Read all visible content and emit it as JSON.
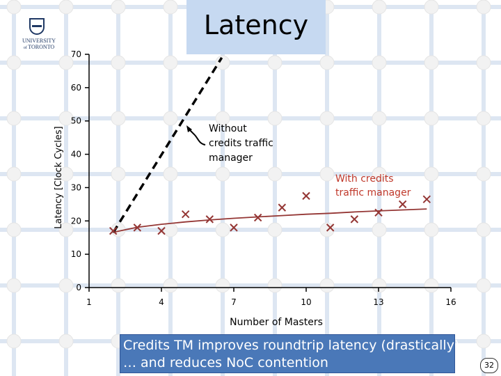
{
  "slide": {
    "title": "Latency",
    "logo_text": [
      "UNIVERSITY",
      "TORONTO"
    ],
    "callout_lines": [
      "Credits TM improves roundtrip latency (drastically)",
      "… and reduces NoC contention"
    ],
    "page_number": "32",
    "accent_color": "#c6d9f1",
    "callout_color": "#4a78b8",
    "marker_color": "#943634",
    "trend_color": "#943634",
    "dashed_line_color": "#000000"
  },
  "chart_data": {
    "type": "scatter",
    "title": "",
    "xlabel": "Number of Masters",
    "ylabel": "Latency [Clock Cycles]",
    "xlim": [
      1,
      16
    ],
    "ylim": [
      0,
      70
    ],
    "xticks": [
      "1",
      "4",
      "7",
      "10",
      "13",
      "16"
    ],
    "yticks": [
      "0",
      "10",
      "20",
      "30",
      "40",
      "50",
      "60",
      "70"
    ],
    "grid": false,
    "series": [
      {
        "name": "With credits traffic manager",
        "marker": "x",
        "x": [
          2,
          3,
          4,
          5,
          6,
          7,
          8,
          9,
          10,
          11,
          12,
          13,
          14,
          15
        ],
        "y": [
          17,
          18,
          17,
          22,
          20.5,
          18,
          21,
          24,
          27.5,
          18,
          20.5,
          22.5,
          25,
          26.5
        ]
      }
    ],
    "trendlines": [
      {
        "series": "With credits traffic manager",
        "style": "solid",
        "x": [
          2,
          3,
          4,
          5,
          6,
          7,
          8,
          9,
          10,
          11,
          12,
          13,
          14,
          15
        ],
        "y": [
          16.6,
          18.1,
          19.0,
          19.7,
          20.3,
          20.8,
          21.2,
          21.6,
          22.0,
          22.3,
          22.7,
          23.0,
          23.3,
          23.6
        ]
      },
      {
        "series": "Without credits traffic manager",
        "style": "dashed",
        "x": [
          2,
          6.5
        ],
        "y": [
          16.5,
          69
        ]
      }
    ],
    "annotations": [
      {
        "text": [
          "Without",
          "credits traffic",
          "manager"
        ],
        "target": "dashed"
      },
      {
        "text": [
          "With credits",
          "traffic manager"
        ],
        "target": "solid"
      }
    ]
  }
}
